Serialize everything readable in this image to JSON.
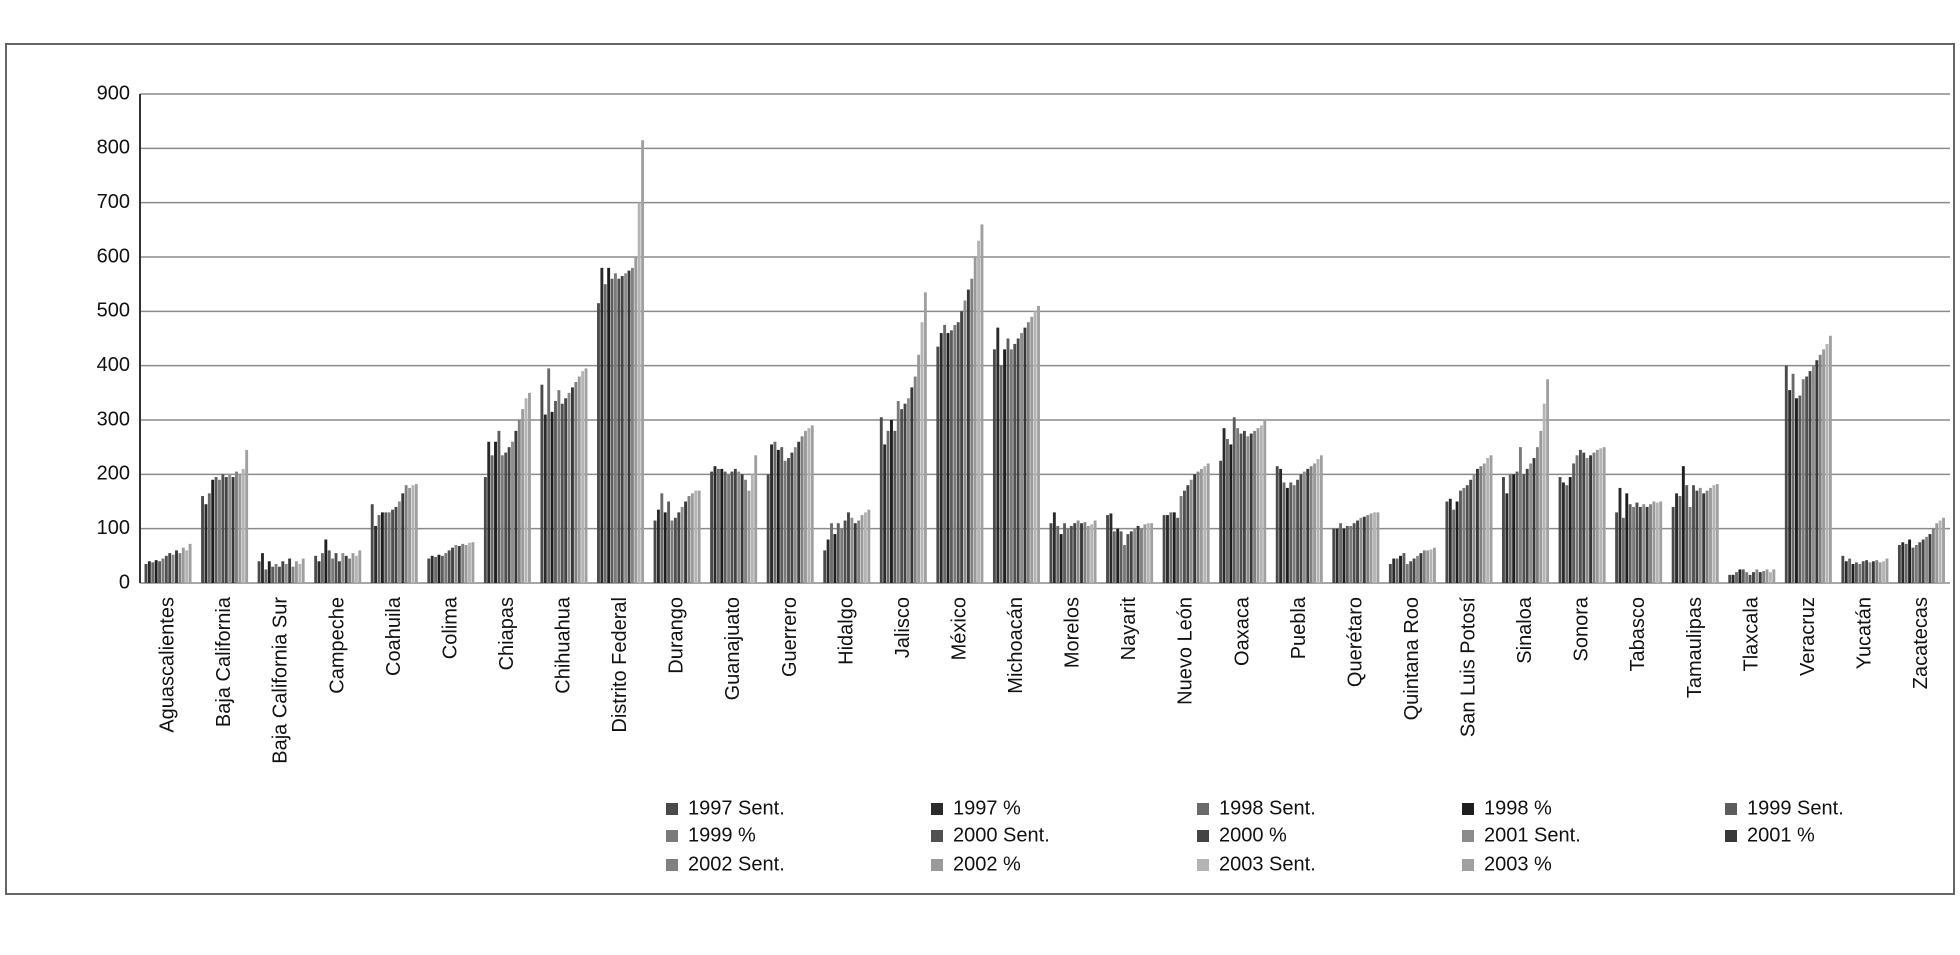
{
  "chart_data": {
    "type": "bar",
    "categories": [
      "Aguascalientes",
      "Baja California",
      "Baja California Sur",
      "Campeche",
      "Coahuila",
      "Colima",
      "Chiapas",
      "Chihuahua",
      "Distrito Federal",
      "Durango",
      "Guanajuato",
      "Guerrero",
      "Hidalgo",
      "Jalisco",
      "México",
      "Michoacán",
      "Morelos",
      "Nayarit",
      "Nuevo León",
      "Oaxaca",
      "Puebla",
      "Querétaro",
      "Quintana Roo",
      "San Luis Potosí",
      "Sinaloa",
      "Sonora",
      "Tabasco",
      "Tamaulipas",
      "Tlaxcala",
      "Veracruz",
      "Yucatán",
      "Zacatecas"
    ],
    "series": [
      {
        "name": "1997 Sent.",
        "color": "#4a4a4a",
        "values": [
          35,
          160,
          40,
          50,
          145,
          45,
          195,
          365,
          515,
          115,
          205,
          200,
          60,
          305,
          435,
          430,
          110,
          125,
          125,
          225,
          215,
          100,
          35,
          150,
          195,
          195,
          130,
          140,
          15,
          400,
          50,
          70
        ]
      },
      {
        "name": "1997 %",
        "color": "#2a2a2a",
        "values": [
          40,
          145,
          55,
          40,
          105,
          50,
          260,
          310,
          580,
          135,
          215,
          255,
          80,
          255,
          460,
          470,
          130,
          128,
          125,
          285,
          210,
          100,
          45,
          155,
          165,
          185,
          175,
          165,
          15,
          355,
          40,
          75
        ]
      },
      {
        "name": "1998 Sent.",
        "color": "#6a6a6a",
        "values": [
          38,
          165,
          25,
          55,
          125,
          48,
          235,
          395,
          550,
          165,
          210,
          260,
          110,
          280,
          475,
          400,
          105,
          95,
          130,
          265,
          185,
          110,
          45,
          135,
          200,
          180,
          120,
          160,
          20,
          385,
          45,
          72
        ]
      },
      {
        "name": "1998 %",
        "color": "#1e1e1e",
        "values": [
          42,
          190,
          40,
          80,
          130,
          52,
          260,
          315,
          580,
          130,
          210,
          245,
          90,
          300,
          460,
          430,
          90,
          100,
          130,
          255,
          175,
          100,
          50,
          150,
          200,
          195,
          165,
          215,
          25,
          340,
          35,
          80
        ]
      },
      {
        "name": "1999 Sent.",
        "color": "#5c5c5c",
        "values": [
          40,
          195,
          30,
          60,
          130,
          50,
          280,
          335,
          560,
          150,
          205,
          250,
          110,
          280,
          465,
          450,
          110,
          95,
          120,
          305,
          185,
          105,
          55,
          170,
          205,
          220,
          145,
          180,
          25,
          345,
          38,
          65
        ]
      },
      {
        "name": "1999 %",
        "color": "#7a7a7a",
        "values": [
          45,
          190,
          35,
          45,
          130,
          55,
          235,
          355,
          570,
          115,
          200,
          225,
          100,
          335,
          475,
          430,
          100,
          70,
          160,
          285,
          180,
          105,
          35,
          175,
          250,
          235,
          140,
          140,
          20,
          375,
          35,
          70
        ]
      },
      {
        "name": "2000 Sent.",
        "color": "#505050",
        "values": [
          50,
          200,
          30,
          55,
          135,
          60,
          240,
          330,
          560,
          120,
          205,
          230,
          115,
          320,
          480,
          440,
          105,
          90,
          170,
          275,
          190,
          110,
          40,
          180,
          200,
          245,
          148,
          180,
          15,
          380,
          40,
          75
        ]
      },
      {
        "name": "2000 %",
        "color": "#444444",
        "values": [
          55,
          195,
          40,
          40,
          140,
          65,
          250,
          340,
          565,
          130,
          210,
          240,
          130,
          330,
          500,
          450,
          110,
          95,
          180,
          280,
          200,
          115,
          45,
          190,
          210,
          240,
          140,
          170,
          20,
          390,
          42,
          80
        ]
      },
      {
        "name": "2001 Sent.",
        "color": "#8c8c8c",
        "values": [
          52,
          200,
          35,
          55,
          150,
          70,
          260,
          350,
          570,
          140,
          205,
          250,
          120,
          340,
          520,
          460,
          115,
          100,
          190,
          270,
          205,
          120,
          50,
          200,
          220,
          230,
          145,
          175,
          25,
          400,
          38,
          85
        ]
      },
      {
        "name": "2001 %",
        "color": "#383838",
        "values": [
          60,
          195,
          45,
          50,
          165,
          68,
          280,
          360,
          575,
          150,
          200,
          260,
          110,
          360,
          540,
          470,
          110,
          105,
          200,
          275,
          210,
          122,
          55,
          210,
          230,
          235,
          140,
          165,
          20,
          410,
          40,
          90
        ]
      },
      {
        "name": "2002 Sent.",
        "color": "#808080",
        "values": [
          55,
          205,
          30,
          45,
          180,
          72,
          300,
          370,
          580,
          160,
          190,
          270,
          115,
          380,
          560,
          480,
          112,
          100,
          205,
          280,
          215,
          125,
          60,
          215,
          250,
          240,
          145,
          170,
          22,
          420,
          42,
          100
        ]
      },
      {
        "name": "2002 %",
        "color": "#9a9a9a",
        "values": [
          65,
          200,
          40,
          55,
          175,
          70,
          320,
          380,
          600,
          165,
          170,
          280,
          125,
          420,
          600,
          490,
          105,
          108,
          210,
          285,
          220,
          128,
          60,
          220,
          280,
          245,
          150,
          175,
          25,
          430,
          38,
          110
        ]
      },
      {
        "name": "2003 Sent.",
        "color": "#b4b4b4",
        "values": [
          60,
          210,
          35,
          50,
          180,
          74,
          340,
          390,
          700,
          170,
          200,
          285,
          130,
          480,
          630,
          500,
          108,
          110,
          215,
          290,
          228,
          130,
          62,
          230,
          330,
          248,
          148,
          180,
          20,
          440,
          40,
          115
        ]
      },
      {
        "name": "2003 %",
        "color": "#a0a0a0",
        "values": [
          72,
          245,
          45,
          60,
          182,
          75,
          350,
          395,
          815,
          170,
          235,
          290,
          135,
          535,
          660,
          510,
          115,
          110,
          220,
          300,
          235,
          130,
          65,
          235,
          375,
          250,
          150,
          182,
          25,
          455,
          45,
          120
        ]
      }
    ],
    "ylim": [
      0,
      900
    ],
    "yticks": [
      0,
      100,
      200,
      300,
      400,
      500,
      600,
      700,
      800,
      900
    ],
    "grid": true,
    "legend": "bottom"
  }
}
